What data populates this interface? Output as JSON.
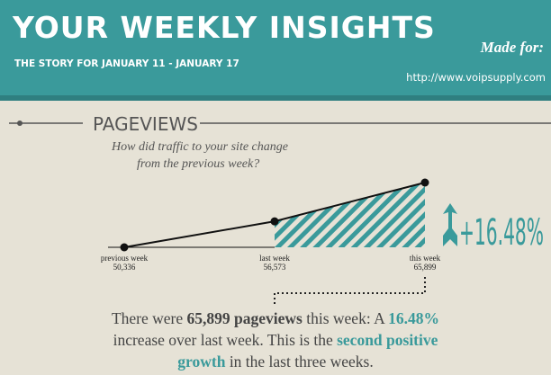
{
  "header": {
    "title": "YOUR WEEKLY INSIGHTS",
    "subtitle": "THE STORY FOR JANUARY 11 - JANUARY 17",
    "made_for": "Made for:",
    "url": "http://www.voipsupply.com"
  },
  "section": {
    "title": "PAGEVIEWS",
    "question": [
      "How did traffic to your site change",
      "from the previous week?"
    ]
  },
  "chart_data": {
    "type": "line",
    "categories": [
      "previous week",
      "last week",
      "this week"
    ],
    "values": [
      50336,
      56573,
      65899
    ],
    "value_labels": [
      "50,336",
      "56,573",
      "65,899"
    ],
    "color": "#111111",
    "accent_color": "#3a9a9b",
    "annotation": "+16.48%"
  },
  "summary": {
    "lines": [
      [
        {
          "text": "There were ",
          "style": "plain"
        },
        {
          "text": "65,899 pageviews",
          "style": "bold"
        },
        {
          "text": " this week: A ",
          "style": "plain"
        },
        {
          "text": "16.48%",
          "style": "accent"
        }
      ],
      [
        {
          "text": "increase over last week. This is the ",
          "style": "plain"
        },
        {
          "text": "second positive",
          "style": "accent"
        }
      ],
      [
        {
          "text": "growth",
          "style": "accent"
        },
        {
          "text": " in the last three weeks.",
          "style": "plain"
        }
      ]
    ]
  }
}
